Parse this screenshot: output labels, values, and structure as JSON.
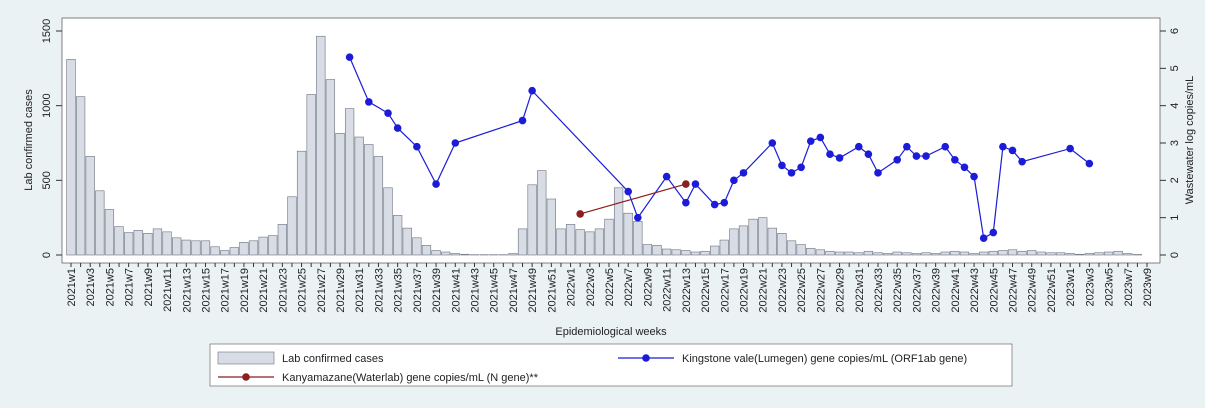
{
  "chart_data": {
    "type": "bar-line",
    "x_label": "Epidemiological weeks",
    "y_label": "Lab confirmed cases",
    "y2_label": "Wastewater log copies/mL",
    "categories": [
      "2021w1",
      null,
      "2021w3",
      null,
      "2021w5",
      null,
      "2021w7",
      null,
      "2021w9",
      null,
      "2021w11",
      null,
      "2021w13",
      null,
      "2021w15",
      null,
      "2021w17",
      null,
      "2021w19",
      null,
      "2021w21",
      null,
      "2021w23",
      null,
      "2021w25",
      null,
      "2021w27",
      null,
      "2021w29",
      null,
      "2021w31",
      null,
      "2021w33",
      null,
      "2021w35",
      null,
      "2021w37",
      null,
      "2021w39",
      null,
      "2021w41",
      null,
      "2021w43",
      null,
      "2021w45",
      null,
      "2021w47",
      null,
      "2021w49",
      null,
      "2021w51",
      null,
      "2022w1",
      null,
      "2022w3",
      null,
      "2022w5",
      null,
      "2022w7",
      null,
      "2022w9",
      null,
      "2022w11",
      null,
      "2022w13",
      null,
      "2022w15",
      null,
      "2022w17",
      null,
      "2022w19",
      null,
      "2022w21",
      null,
      "2022w23",
      null,
      "2022w25",
      null,
      "2022w27",
      null,
      "2022w29",
      null,
      "2022w31",
      null,
      "2022w33",
      null,
      "2022w35",
      null,
      "2022w37",
      null,
      "2022w39",
      null,
      "2022w41",
      null,
      "2022w43",
      null,
      "2022w45",
      null,
      "2022w47",
      null,
      "2022w49",
      null,
      "2022w51",
      null,
      "2023w1",
      null,
      "2023w3",
      null,
      "2023w5",
      null,
      "2023w7",
      null,
      "2023w9"
    ],
    "series": [
      {
        "name": "Lab confirmed cases",
        "type": "bar",
        "color": "#d8dce4",
        "values": [
          1310,
          1060,
          660,
          430,
          305,
          190,
          150,
          165,
          145,
          175,
          155,
          115,
          100,
          95,
          95,
          55,
          30,
          50,
          85,
          95,
          120,
          130,
          205,
          390,
          695,
          1075,
          1465,
          1175,
          815,
          980,
          790,
          740,
          660,
          450,
          265,
          180,
          115,
          65,
          30,
          20,
          10,
          5,
          2,
          2,
          2,
          2,
          10,
          175,
          470,
          565,
          375,
          175,
          205,
          170,
          155,
          175,
          240,
          450,
          280,
          225,
          70,
          65,
          40,
          35,
          30,
          20,
          25,
          60,
          100,
          175,
          195,
          240,
          250,
          180,
          145,
          95,
          70,
          45,
          35,
          25,
          20,
          20,
          15,
          25,
          15,
          10,
          20,
          15,
          10,
          15,
          10,
          20,
          25,
          20,
          10,
          20,
          25,
          30,
          35,
          25,
          30,
          20,
          15,
          15,
          10,
          5,
          10,
          15,
          20,
          25,
          10,
          3,
          null
        ]
      },
      {
        "name": "Kingstone vale(Lumegen) gene copies/mL (ORF1ab gene)",
        "type": "line",
        "axis": "y2",
        "color": "#1c1cd8",
        "x": [
          "2021w30",
          "2021w32",
          "2021w34",
          "2021w35",
          "2021w37",
          "2021w39",
          "2021w41",
          "2021w48",
          "2021w49",
          "2022w7",
          "2022w8",
          "2022w11",
          "2022w13",
          "2022w14",
          "2022w16",
          "2022w17",
          "2022w18",
          "2022w19",
          "2022w22",
          "2022w23",
          "2022w24",
          "2022w25",
          "2022w26",
          "2022w27",
          "2022w28",
          "2022w29",
          "2022w31",
          "2022w32",
          "2022w33",
          "2022w35",
          "2022w36",
          "2022w37",
          "2022w38",
          "2022w40",
          "2022w41",
          "2022w42",
          "2022w43",
          "2022w44",
          "2022w45",
          "2022w46",
          "2022w47",
          "2022w48",
          "2023w1",
          "2023w3"
        ],
        "values": [
          5.3,
          4.1,
          3.8,
          3.4,
          2.9,
          1.9,
          3.0,
          3.6,
          4.4,
          1.7,
          1.0,
          2.1,
          1.4,
          1.9,
          1.35,
          1.4,
          2.0,
          2.2,
          3.0,
          2.4,
          2.2,
          2.35,
          3.05,
          3.15,
          2.7,
          2.6,
          2.9,
          2.7,
          2.2,
          2.55,
          2.9,
          2.65,
          2.65,
          2.9,
          2.55,
          2.35,
          2.1,
          0.45,
          0.6,
          2.9,
          2.8,
          2.5,
          2.85,
          2.45
        ]
      },
      {
        "name": "Kanyamazane(Waterlab) gene copies/mL (N gene)**",
        "type": "line",
        "axis": "y2",
        "color": "#8b1e1e",
        "x": [
          "2022w2",
          "2022w13"
        ],
        "values": [
          1.1,
          1.9
        ]
      }
    ],
    "ylim": [
      0,
      1500
    ],
    "yticks": [
      0,
      500,
      1000,
      1500
    ],
    "y2lim": [
      0,
      6
    ],
    "y2ticks": [
      0,
      1,
      2,
      3,
      4,
      5,
      6
    ]
  }
}
